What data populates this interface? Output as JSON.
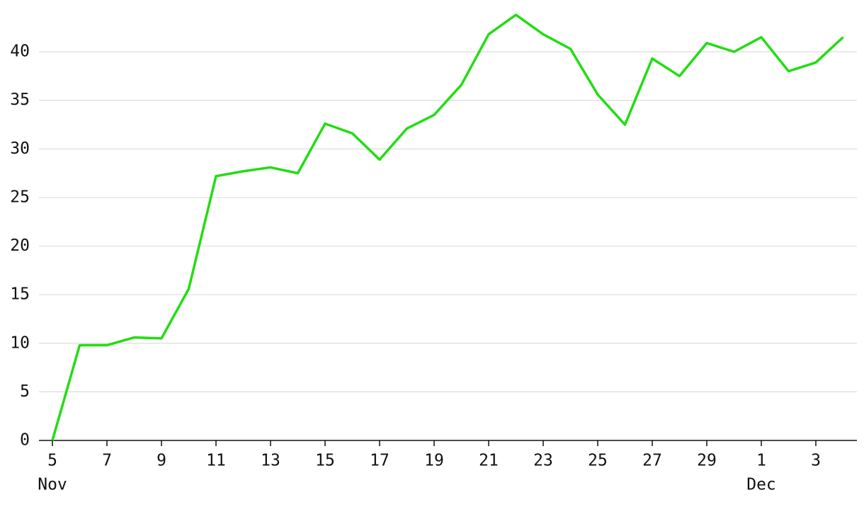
{
  "chart_data": {
    "type": "line",
    "x": [
      "Nov 5",
      "Nov 6",
      "Nov 7",
      "Nov 8",
      "Nov 9",
      "Nov 10",
      "Nov 11",
      "Nov 12",
      "Nov 13",
      "Nov 14",
      "Nov 15",
      "Nov 16",
      "Nov 17",
      "Nov 18",
      "Nov 19",
      "Nov 20",
      "Nov 21",
      "Nov 22",
      "Nov 23",
      "Nov 24",
      "Nov 25",
      "Nov 26",
      "Nov 27",
      "Nov 28",
      "Nov 29",
      "Nov 30",
      "Dec 1",
      "Dec 2",
      "Dec 3",
      "Dec 4"
    ],
    "series": [
      {
        "color": "#22dd11",
        "values": [
          0,
          9.8,
          9.8,
          10.6,
          10.5,
          15.6,
          27.2,
          27.7,
          28.1,
          27.5,
          32.6,
          31.6,
          28.9,
          32.1,
          33.5,
          36.6,
          41.8,
          43.8,
          41.8,
          40.3,
          35.6,
          32.5,
          39.3,
          37.5,
          40.9,
          40.0,
          41.5,
          38.0,
          38.9,
          41.5
        ]
      }
    ],
    "xticks": [
      {
        "value": "Nov 5",
        "label": "5"
      },
      {
        "value": "Nov 7",
        "label": "7"
      },
      {
        "value": "Nov 9",
        "label": "9"
      },
      {
        "value": "Nov 11",
        "label": "11"
      },
      {
        "value": "Nov 13",
        "label": "13"
      },
      {
        "value": "Nov 15",
        "label": "15"
      },
      {
        "value": "Nov 17",
        "label": "17"
      },
      {
        "value": "Nov 19",
        "label": "19"
      },
      {
        "value": "Nov 21",
        "label": "21"
      },
      {
        "value": "Nov 23",
        "label": "23"
      },
      {
        "value": "Nov 25",
        "label": "25"
      },
      {
        "value": "Nov 27",
        "label": "27"
      },
      {
        "value": "Nov 29",
        "label": "29"
      },
      {
        "value": "Dec 1",
        "label": "1"
      },
      {
        "value": "Dec 3",
        "label": "3"
      }
    ],
    "x_group_labels": [
      {
        "value": "Nov 5",
        "label": "Nov"
      },
      {
        "value": "Dec 1",
        "label": "Dec"
      }
    ],
    "ylim": [
      0,
      44.6
    ],
    "yticks": [
      0,
      5,
      10,
      15,
      20,
      25,
      30,
      35,
      40
    ],
    "grid": true
  }
}
